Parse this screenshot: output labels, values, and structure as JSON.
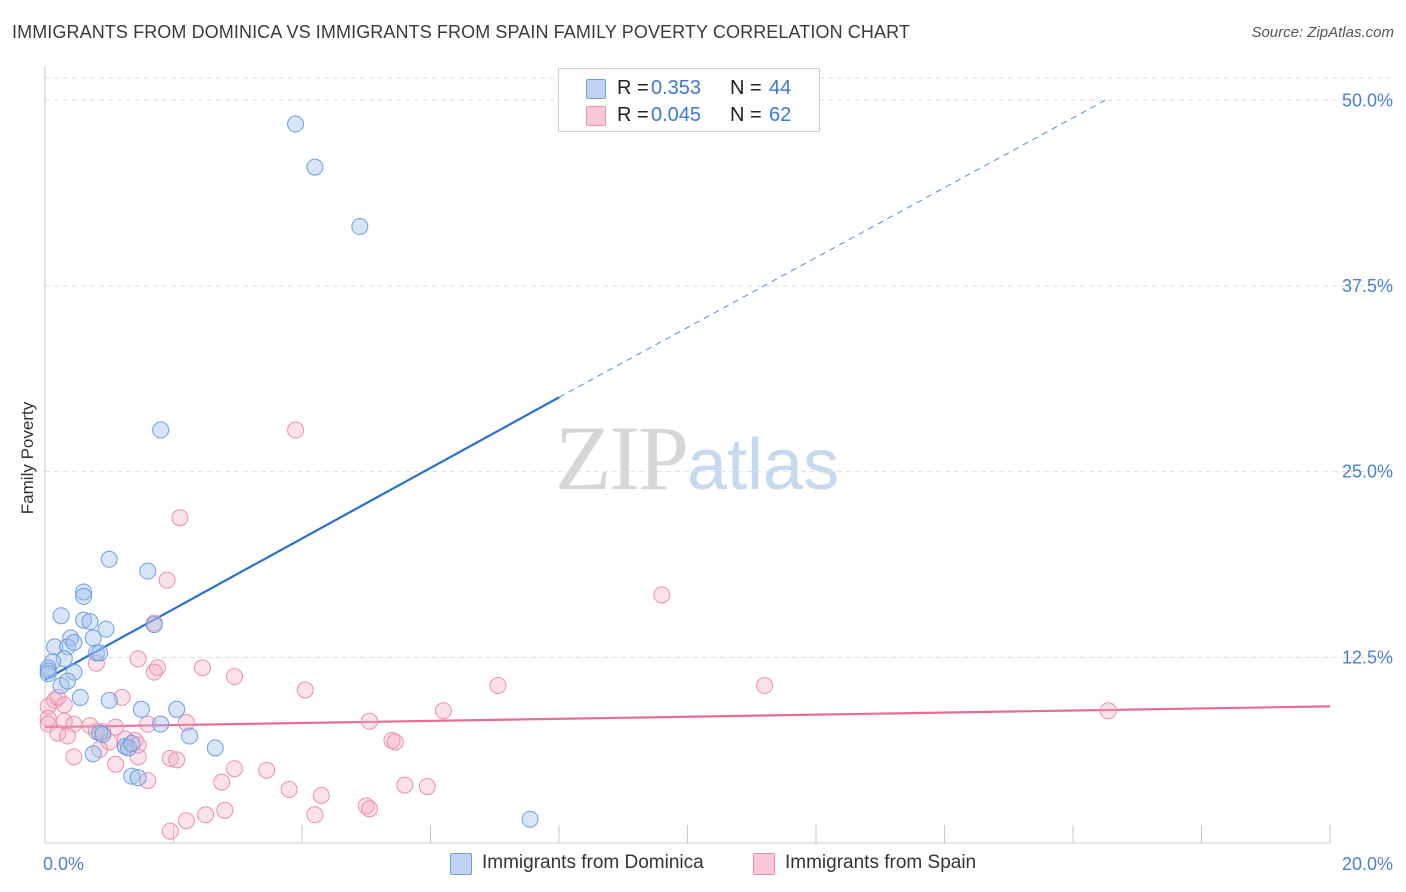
{
  "title": "IMMIGRANTS FROM DOMINICA VS IMMIGRANTS FROM SPAIN FAMILY POVERTY CORRELATION CHART",
  "source": "Source: ZipAtlas.com",
  "watermark": {
    "zip": "ZIP",
    "atlas": "atlas"
  },
  "legend": {
    "rows": [
      {
        "r_label": "R =",
        "r_value": "0.353",
        "n_label": "N =",
        "n_value": "44"
      },
      {
        "r_label": "R =",
        "r_value": "0.045",
        "n_label": "N =",
        "n_value": "62"
      }
    ]
  },
  "chart_data": {
    "type": "scatter",
    "title": "IMMIGRANTS FROM DOMINICA VS IMMIGRANTS FROM SPAIN FAMILY POVERTY CORRELATION CHART",
    "xlabel": "",
    "ylabel": "Family Poverty",
    "xlim": [
      0,
      20
    ],
    "ylim": [
      0,
      51.5
    ],
    "x_tick_labels": [
      "0.0%",
      "20.0%"
    ],
    "y_ticks": [
      12.5,
      25.0,
      37.5,
      50.0
    ],
    "y_tick_labels": [
      "12.5%",
      "25.0%",
      "37.5%",
      "50.0%"
    ],
    "colors": {
      "dominica": "#9bbdea",
      "spain": "#f4a9c1",
      "dominica_line": "#2a6fd0",
      "spain_line": "#e56c98"
    },
    "series": [
      {
        "name": "Immigrants from Dominica",
        "R": 0.353,
        "N": 44,
        "trend": {
          "x0": 0.0,
          "y0": 11.0,
          "x1": 8.0,
          "y1": 30.0,
          "dash_x1": 16.5,
          "dash_y1": 50.0
        },
        "points": [
          [
            3.9,
            48.4
          ],
          [
            4.2,
            45.5
          ],
          [
            4.9,
            41.5
          ],
          [
            1.8,
            27.8
          ],
          [
            1.0,
            19.1
          ],
          [
            1.6,
            18.3
          ],
          [
            0.6,
            16.9
          ],
          [
            0.6,
            16.6
          ],
          [
            0.25,
            15.3
          ],
          [
            0.6,
            15.0
          ],
          [
            0.7,
            14.9
          ],
          [
            0.95,
            14.4
          ],
          [
            1.7,
            14.7
          ],
          [
            0.4,
            13.8
          ],
          [
            0.75,
            13.8
          ],
          [
            0.15,
            13.2
          ],
          [
            0.35,
            13.2
          ],
          [
            0.45,
            13.5
          ],
          [
            0.8,
            12.8
          ],
          [
            0.85,
            12.8
          ],
          [
            0.3,
            12.4
          ],
          [
            0.12,
            12.2
          ],
          [
            0.05,
            11.8
          ],
          [
            0.05,
            11.6
          ],
          [
            0.45,
            11.5
          ],
          [
            0.25,
            10.6
          ],
          [
            0.35,
            10.9
          ],
          [
            0.55,
            9.8
          ],
          [
            1.0,
            9.6
          ],
          [
            1.5,
            9.0
          ],
          [
            2.05,
            9.0
          ],
          [
            1.8,
            8.0
          ],
          [
            2.25,
            7.2
          ],
          [
            0.85,
            7.4
          ],
          [
            1.25,
            6.5
          ],
          [
            1.3,
            6.4
          ],
          [
            0.75,
            6.0
          ],
          [
            1.35,
            6.7
          ],
          [
            2.65,
            6.4
          ],
          [
            1.35,
            4.5
          ],
          [
            1.45,
            4.4
          ],
          [
            7.55,
            1.6
          ],
          [
            0.05,
            11.4
          ],
          [
            0.9,
            7.3
          ]
        ]
      },
      {
        "name": "Immigrants from Spain",
        "R": 0.045,
        "N": 62,
        "trend": {
          "x0": 0.0,
          "y0": 7.8,
          "x1": 20.0,
          "y1": 9.2
        },
        "points": [
          [
            3.9,
            27.8
          ],
          [
            2.1,
            21.9
          ],
          [
            1.9,
            17.7
          ],
          [
            9.6,
            16.7
          ],
          [
            1.7,
            14.8
          ],
          [
            0.8,
            12.1
          ],
          [
            1.45,
            12.4
          ],
          [
            1.75,
            11.8
          ],
          [
            1.7,
            11.5
          ],
          [
            2.45,
            11.8
          ],
          [
            2.95,
            11.2
          ],
          [
            4.05,
            10.3
          ],
          [
            7.05,
            10.6
          ],
          [
            11.2,
            10.6
          ],
          [
            0.15,
            9.6
          ],
          [
            0.05,
            9.2
          ],
          [
            0.2,
            9.8
          ],
          [
            0.3,
            9.3
          ],
          [
            1.2,
            9.8
          ],
          [
            6.2,
            8.9
          ],
          [
            16.55,
            8.9
          ],
          [
            0.05,
            8.4
          ],
          [
            0.05,
            8.0
          ],
          [
            0.3,
            8.2
          ],
          [
            0.45,
            8.0
          ],
          [
            0.7,
            7.9
          ],
          [
            0.8,
            7.5
          ],
          [
            1.1,
            7.8
          ],
          [
            1.6,
            8.0
          ],
          [
            2.2,
            8.1
          ],
          [
            5.05,
            8.2
          ],
          [
            0.2,
            7.4
          ],
          [
            0.35,
            7.2
          ],
          [
            0.9,
            7.5
          ],
          [
            1.25,
            7.0
          ],
          [
            1.0,
            6.8
          ],
          [
            1.4,
            6.9
          ],
          [
            1.25,
            6.5
          ],
          [
            1.45,
            6.6
          ],
          [
            0.85,
            6.3
          ],
          [
            5.4,
            6.9
          ],
          [
            5.45,
            6.8
          ],
          [
            0.45,
            5.8
          ],
          [
            1.45,
            5.8
          ],
          [
            1.95,
            5.7
          ],
          [
            2.05,
            5.6
          ],
          [
            1.1,
            5.3
          ],
          [
            2.95,
            5.0
          ],
          [
            3.45,
            4.9
          ],
          [
            1.6,
            4.2
          ],
          [
            2.75,
            4.1
          ],
          [
            5.6,
            3.9
          ],
          [
            5.95,
            3.8
          ],
          [
            3.8,
            3.6
          ],
          [
            4.3,
            3.2
          ],
          [
            5.0,
            2.5
          ],
          [
            5.05,
            2.3
          ],
          [
            4.2,
            1.9
          ],
          [
            2.8,
            2.2
          ],
          [
            2.5,
            1.9
          ],
          [
            2.2,
            1.5
          ],
          [
            1.95,
            0.8
          ]
        ]
      }
    ]
  },
  "bottom_legend": [
    "Immigrants from Dominica",
    "Immigrants from Spain"
  ]
}
